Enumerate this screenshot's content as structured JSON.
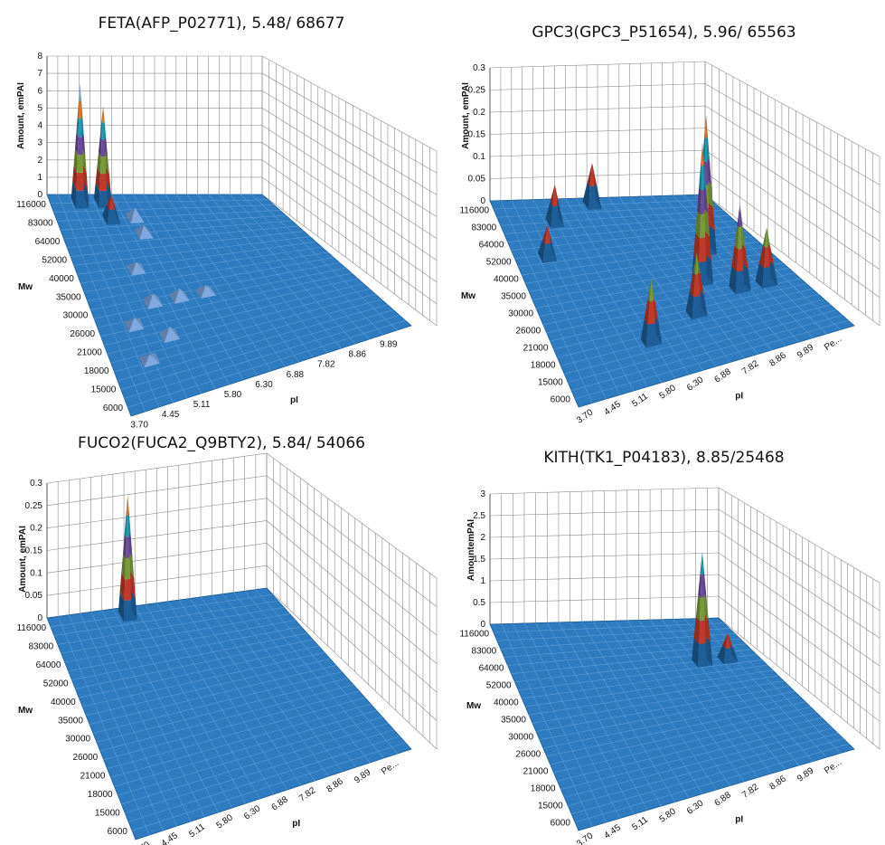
{
  "chart_data": [
    {
      "type": "3d-surface",
      "title": "FETA(AFP_P02771), 5.48/ 68677",
      "zlabel": "Amount, emPAI",
      "ylabel": "Mw",
      "xlabel": "pI",
      "zticks": [
        "0",
        "1",
        "2",
        "3",
        "4",
        "5",
        "6",
        "7",
        "8"
      ],
      "zlim": [
        0,
        8
      ],
      "mw_ticks": [
        "116000",
        "83000",
        "64000",
        "52000",
        "40000",
        "35000",
        "30000",
        "26000",
        "21000",
        "18000",
        "15000",
        "6000"
      ],
      "pi_ticks": [
        "3.70",
        "4.45",
        "5.11",
        "5.80",
        "6.30",
        "6.88",
        "7.82",
        "8.86",
        "9.89"
      ],
      "tilted_pi_labels": false,
      "peaks": [
        {
          "pI": 4.45,
          "Mw": "116000",
          "value": 6.9
        },
        {
          "pI": 5.11,
          "Mw": "116000",
          "value": 5.6
        },
        {
          "pI": 5.11,
          "Mw": "83000",
          "value": 1.4
        },
        {
          "pI": 5.8,
          "Mw": "83000",
          "value": 0.6
        },
        {
          "pI": 5.8,
          "Mw": "64000",
          "value": 0.5
        },
        {
          "pI": 5.11,
          "Mw": "40000",
          "value": 0.4
        },
        {
          "pI": 5.11,
          "Mw": "30000",
          "value": 0.5
        },
        {
          "pI": 5.8,
          "Mw": "30000",
          "value": 0.5
        },
        {
          "pI": 6.3,
          "Mw": "30000",
          "value": 0.4
        },
        {
          "pI": 4.45,
          "Mw": "26000",
          "value": 0.4
        },
        {
          "pI": 5.11,
          "Mw": "21000",
          "value": 0.5
        },
        {
          "pI": 4.45,
          "Mw": "18000",
          "value": 0.3
        }
      ]
    },
    {
      "type": "3d-surface",
      "title": "GPC3(GPC3_P51654), 5.96/ 65563",
      "zlabel": "Amount, emPAI",
      "ylabel": "Mw",
      "xlabel": "pI",
      "zticks": [
        "0",
        "0.05",
        "0.1",
        "0.15",
        "0.2",
        "0.25",
        "0.3"
      ],
      "zlim": [
        0,
        0.3
      ],
      "mw_ticks": [
        "116000",
        "83000",
        "64000",
        "52000",
        "40000",
        "35000",
        "30000",
        "26000",
        "21000",
        "18000",
        "15000",
        "6000"
      ],
      "pi_ticks": [
        "3.70",
        "4.45",
        "5.11",
        "5.80",
        "6.30",
        "6.88",
        "7.82",
        "8.86",
        "9.89",
        "Pe..."
      ],
      "tilted_pi_labels": true,
      "peaks": [
        {
          "pI": 4.45,
          "Mw": "52000",
          "value": 0.07
        },
        {
          "pI": 5.11,
          "Mw": "83000",
          "value": 0.085
        },
        {
          "pI": 6.3,
          "Mw": "116000",
          "value": 0.095
        },
        {
          "pI": 5.8,
          "Mw": "18000",
          "value": 0.13
        },
        {
          "pI": 6.88,
          "Mw": "21000",
          "value": 0.13
        },
        {
          "pI": 7.82,
          "Mw": "30000",
          "value": 0.3
        },
        {
          "pI": 8.86,
          "Mw": "40000",
          "value": 0.3
        },
        {
          "pI": 8.86,
          "Mw": "26000",
          "value": 0.18
        },
        {
          "pI": 9.89,
          "Mw": "26000",
          "value": 0.12
        }
      ]
    },
    {
      "type": "3d-surface",
      "title": "FUCO2(FUCA2_Q9BTY2), 5.84/ 54066",
      "zlabel": "Amount, emPAI",
      "ylabel": "Mw",
      "xlabel": "pI",
      "zticks": [
        "0",
        "0.05",
        "0.1",
        "0.15",
        "0.2",
        "0.25",
        "0.3"
      ],
      "zlim": [
        0,
        0.3
      ],
      "mw_ticks": [
        "116000",
        "83000",
        "64000",
        "52000",
        "40000",
        "35000",
        "30000",
        "26000",
        "21000",
        "18000",
        "15000",
        "6000"
      ],
      "pi_ticks": [
        "3.70",
        "4.45",
        "5.11",
        "5.80",
        "6.30",
        "6.88",
        "7.82",
        "8.86",
        "9.89",
        "Pe..."
      ],
      "tilted_pi_labels": true,
      "peaks": [
        {
          "pI": 5.8,
          "Mw": "116000",
          "value": 0.27
        }
      ]
    },
    {
      "type": "3d-surface",
      "title": "KITH(TK1_P04183), 8.85/25468",
      "zlabel": "AmountemPAI",
      "ylabel": "Mw",
      "xlabel": "pI",
      "zticks": [
        "0",
        "0.5",
        "1",
        "1.5",
        "2",
        "2.5",
        "3"
      ],
      "zlim": [
        0,
        3
      ],
      "mw_ticks": [
        "116000",
        "83000",
        "64000",
        "52000",
        "40000",
        "35000",
        "30000",
        "26000",
        "21000",
        "18000",
        "15000",
        "6000"
      ],
      "pi_ticks": [
        "3.70",
        "4.45",
        "5.11",
        "5.80",
        "6.30",
        "6.88",
        "7.82",
        "8.86",
        "9.89",
        "Pe..."
      ],
      "tilted_pi_labels": true,
      "peaks": [
        {
          "pI": 8.86,
          "Mw": "52000",
          "value": 2.5
        },
        {
          "pI": 9.89,
          "Mw": "52000",
          "value": 0.6
        }
      ]
    }
  ],
  "colors": {
    "floor": "#2e7bc0",
    "floor_grid": "#5c9bd3",
    "wall_grid": "#8a8a8a",
    "bands": [
      "#1f5f99",
      "#c0392b",
      "#7a9a3a",
      "#6b4c9a",
      "#1e9bb0",
      "#e07a2c",
      "#7fa8e0"
    ]
  }
}
